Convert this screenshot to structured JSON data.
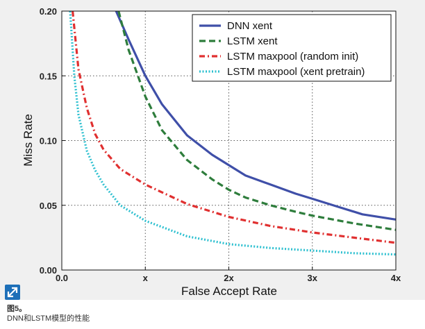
{
  "chart_data": {
    "type": "line",
    "title": "",
    "xlabel": "False Accept Rate",
    "ylabel": "Miss Rate",
    "xlim": [
      0,
      4
    ],
    "ylim": [
      0,
      0.2
    ],
    "x_ticks": [
      0,
      1,
      2,
      3,
      4
    ],
    "x_tick_labels": [
      "0.0",
      "x",
      "2x",
      "3x",
      "4x"
    ],
    "y_ticks": [
      0,
      0.05,
      0.1,
      0.15,
      0.2
    ],
    "y_tick_labels": [
      "0.00",
      "0.05",
      "0.10",
      "0.15",
      "0.20"
    ],
    "grid": true,
    "legend_position": "top-right",
    "series": [
      {
        "name": "DNN xent",
        "color": "#3f4fa8",
        "style": "solid",
        "x": [
          0.65,
          0.8,
          1.0,
          1.2,
          1.5,
          1.8,
          2.1,
          2.2,
          2.5,
          2.8,
          3.0,
          3.3,
          3.6,
          4.0
        ],
        "y": [
          0.2,
          0.178,
          0.15,
          0.128,
          0.104,
          0.089,
          0.077,
          0.073,
          0.066,
          0.059,
          0.055,
          0.049,
          0.043,
          0.039
        ]
      },
      {
        "name": "LSTM xent",
        "color": "#2e7d3c",
        "style": "dashed",
        "x": [
          0.68,
          0.8,
          1.0,
          1.2,
          1.5,
          1.8,
          2.0,
          2.2,
          2.5,
          2.8,
          3.0,
          3.5,
          4.0
        ],
        "y": [
          0.2,
          0.17,
          0.134,
          0.108,
          0.085,
          0.07,
          0.062,
          0.056,
          0.05,
          0.045,
          0.042,
          0.036,
          0.031
        ]
      },
      {
        "name": "LSTM maxpool (random init)",
        "color": "#e03030",
        "style": "dashdot",
        "x": [
          0.13,
          0.2,
          0.3,
          0.4,
          0.5,
          0.7,
          1.0,
          1.5,
          2.0,
          2.5,
          3.0,
          3.5,
          4.0
        ],
        "y": [
          0.2,
          0.155,
          0.125,
          0.105,
          0.093,
          0.078,
          0.066,
          0.051,
          0.041,
          0.034,
          0.029,
          0.025,
          0.021
        ]
      },
      {
        "name": "LSTM maxpool (xent pretrain)",
        "color": "#2ec0d0",
        "style": "dotted",
        "x": [
          0.1,
          0.15,
          0.2,
          0.3,
          0.4,
          0.5,
          0.7,
          1.0,
          1.5,
          2.0,
          2.5,
          3.0,
          3.5,
          4.0
        ],
        "y": [
          0.2,
          0.15,
          0.12,
          0.092,
          0.077,
          0.066,
          0.05,
          0.038,
          0.026,
          0.02,
          0.017,
          0.015,
          0.013,
          0.012
        ]
      }
    ]
  },
  "caption": {
    "figure_label": "图5。",
    "text": "DNN和LSTM模型的性能"
  }
}
